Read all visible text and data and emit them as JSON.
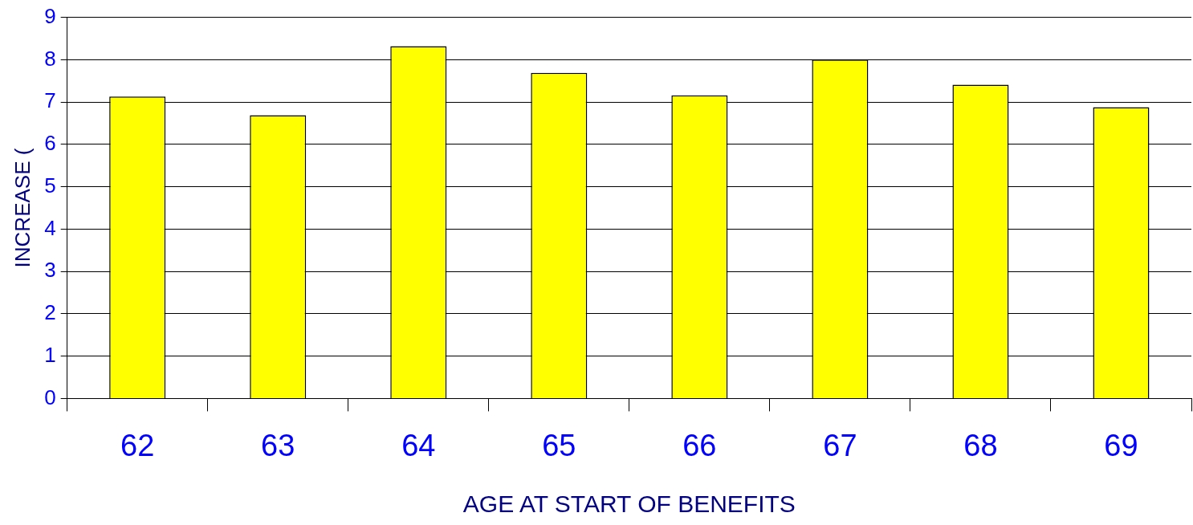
{
  "chart_data": {
    "type": "bar",
    "xlabel": "AGE AT START OF BENEFITS",
    "ylabel": "INCREASE (",
    "categories": [
      "62",
      "63",
      "64",
      "65",
      "66",
      "67",
      "68",
      "69"
    ],
    "values": [
      7.13,
      6.69,
      8.32,
      7.69,
      7.16,
      8.0,
      7.41,
      6.88
    ],
    "color": "#ffff00",
    "ylim": [
      0,
      9
    ],
    "yticks": [
      0,
      1,
      2,
      3,
      4,
      5,
      6,
      7,
      8,
      9
    ],
    "grid": "y",
    "legend": false
  }
}
